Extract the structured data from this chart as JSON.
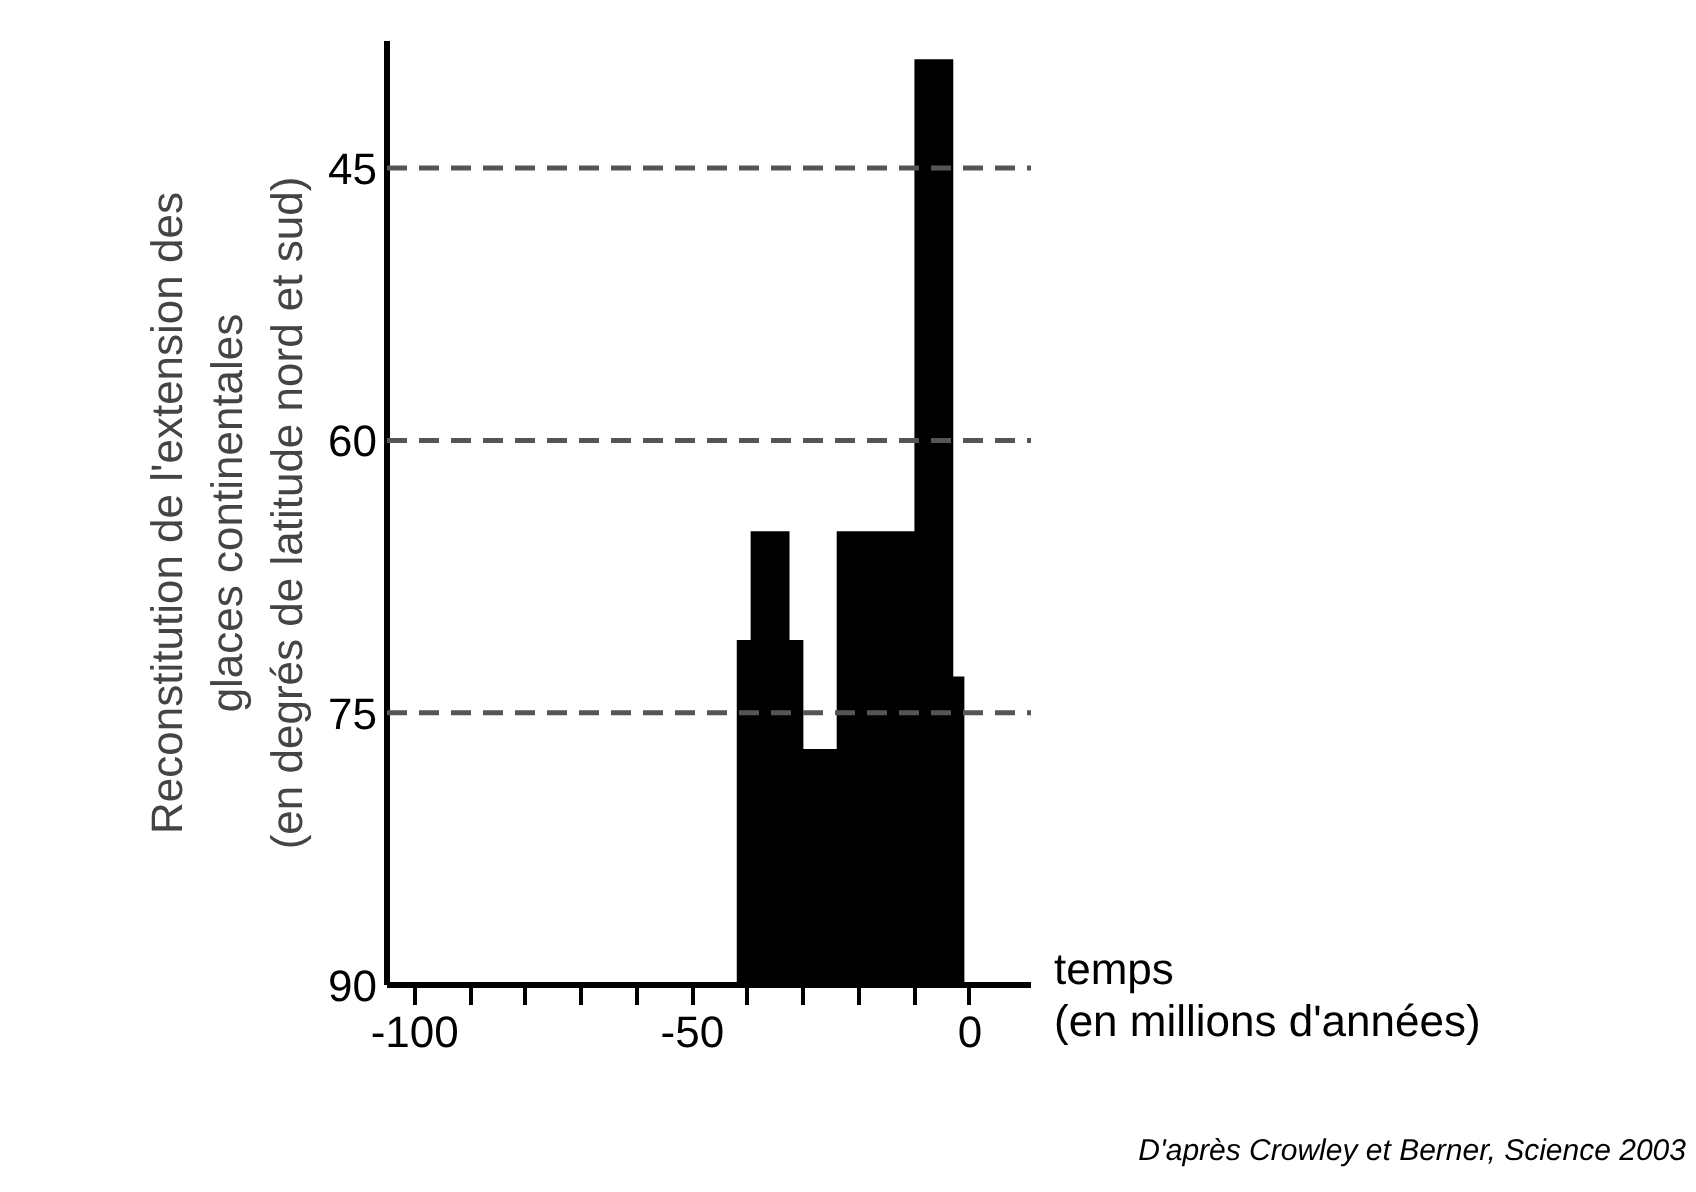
{
  "chart_data": {
    "type": "area",
    "ylabel": "Reconstitution de l'extension des\nglaces continentales\n(en degrés de latitude nord et sud)",
    "xlabel": "temps\n(en millions d'années)",
    "x": [
      -42,
      -42,
      -39.5,
      -39.5,
      -32.5,
      -32.5,
      -30,
      -30,
      -24,
      -24,
      -10,
      -10,
      -3,
      -3,
      -1,
      -1
    ],
    "values": [
      90,
      71,
      71,
      65,
      65,
      71,
      71,
      77,
      77,
      65,
      65,
      39,
      39,
      73,
      73,
      90
    ],
    "color": "#000000",
    "xlim": [
      -105,
      11
    ],
    "ylim": [
      90,
      38
    ],
    "xticks": [
      -100,
      {
        "value": -90,
        "label": null
      },
      {
        "value": -80,
        "label": null
      },
      {
        "value": -70,
        "label": null
      },
      {
        "value": -60,
        "label": null
      },
      -50,
      {
        "value": -40,
        "label": null
      },
      {
        "value": -30,
        "label": null
      },
      {
        "value": -20,
        "label": null
      },
      {
        "value": -10,
        "label": null
      },
      0
    ],
    "yticks": [
      45,
      60,
      75,
      90
    ],
    "ref_lines": [
      {
        "axis": "y",
        "value": 45,
        "color": "#555555",
        "line_style": "dashed"
      },
      {
        "axis": "y",
        "value": 60,
        "color": "#555555",
        "line_style": "dashed"
      },
      {
        "axis": "y",
        "value": 75,
        "color": "#555555",
        "line_style": "dashed"
      }
    ],
    "grid": false,
    "legend": false,
    "annotations": [
      "D'après Crowley et Berner, Science 2003"
    ]
  }
}
